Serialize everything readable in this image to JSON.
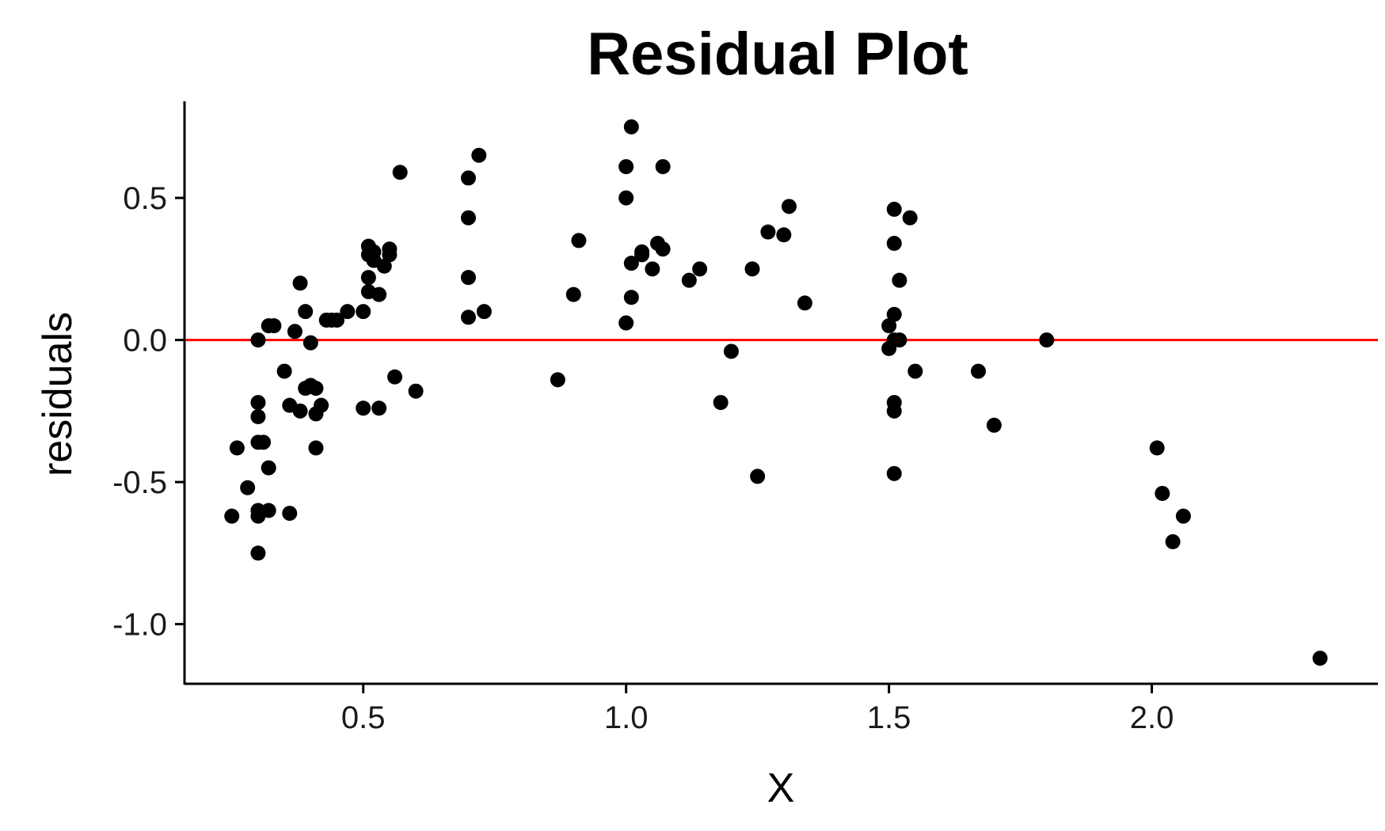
{
  "chart_data": {
    "type": "scatter",
    "title": "Residual Plot",
    "xlabel": "X",
    "ylabel": "residuals",
    "xlim": [
      0.16,
      2.43
    ],
    "ylim": [
      -1.21,
      0.84
    ],
    "x_ticks": [
      0.5,
      1.0,
      1.5,
      2.0
    ],
    "x_tick_labels": [
      "0.5",
      "1.0",
      "1.5",
      "2.0"
    ],
    "y_ticks": [
      -1.0,
      -0.5,
      0.0,
      0.5
    ],
    "y_tick_labels": [
      "-1.0",
      "-0.5",
      "0.0",
      "0.5"
    ],
    "grid": false,
    "point_color": "#000000",
    "reference_line": {
      "y": 0.0,
      "color": "#ff0000"
    },
    "points": [
      {
        "x": 0.25,
        "y": -0.62
      },
      {
        "x": 0.26,
        "y": -0.38
      },
      {
        "x": 0.28,
        "y": -0.52
      },
      {
        "x": 0.3,
        "y": 0.0
      },
      {
        "x": 0.3,
        "y": -0.22
      },
      {
        "x": 0.3,
        "y": -0.27
      },
      {
        "x": 0.3,
        "y": -0.36
      },
      {
        "x": 0.3,
        "y": -0.6
      },
      {
        "x": 0.3,
        "y": -0.62
      },
      {
        "x": 0.3,
        "y": -0.75
      },
      {
        "x": 0.31,
        "y": -0.36
      },
      {
        "x": 0.32,
        "y": 0.05
      },
      {
        "x": 0.32,
        "y": -0.45
      },
      {
        "x": 0.32,
        "y": -0.6
      },
      {
        "x": 0.33,
        "y": 0.05
      },
      {
        "x": 0.35,
        "y": -0.11
      },
      {
        "x": 0.36,
        "y": -0.23
      },
      {
        "x": 0.36,
        "y": -0.61
      },
      {
        "x": 0.37,
        "y": 0.03
      },
      {
        "x": 0.38,
        "y": 0.2
      },
      {
        "x": 0.38,
        "y": -0.25
      },
      {
        "x": 0.39,
        "y": 0.1
      },
      {
        "x": 0.39,
        "y": -0.17
      },
      {
        "x": 0.4,
        "y": -0.01
      },
      {
        "x": 0.4,
        "y": -0.16
      },
      {
        "x": 0.41,
        "y": -0.17
      },
      {
        "x": 0.41,
        "y": -0.26
      },
      {
        "x": 0.41,
        "y": -0.38
      },
      {
        "x": 0.42,
        "y": -0.23
      },
      {
        "x": 0.43,
        "y": 0.07
      },
      {
        "x": 0.44,
        "y": 0.07
      },
      {
        "x": 0.45,
        "y": 0.07
      },
      {
        "x": 0.47,
        "y": 0.1
      },
      {
        "x": 0.5,
        "y": 0.1
      },
      {
        "x": 0.5,
        "y": -0.24
      },
      {
        "x": 0.51,
        "y": 0.33
      },
      {
        "x": 0.51,
        "y": 0.3
      },
      {
        "x": 0.51,
        "y": 0.22
      },
      {
        "x": 0.51,
        "y": 0.17
      },
      {
        "x": 0.52,
        "y": 0.31
      },
      {
        "x": 0.52,
        "y": 0.28
      },
      {
        "x": 0.53,
        "y": 0.16
      },
      {
        "x": 0.53,
        "y": -0.24
      },
      {
        "x": 0.54,
        "y": 0.26
      },
      {
        "x": 0.55,
        "y": 0.32
      },
      {
        "x": 0.55,
        "y": 0.3
      },
      {
        "x": 0.56,
        "y": -0.13
      },
      {
        "x": 0.57,
        "y": 0.59
      },
      {
        "x": 0.6,
        "y": -0.18
      },
      {
        "x": 0.7,
        "y": 0.57
      },
      {
        "x": 0.7,
        "y": 0.43
      },
      {
        "x": 0.7,
        "y": 0.22
      },
      {
        "x": 0.7,
        "y": 0.08
      },
      {
        "x": 0.72,
        "y": 0.65
      },
      {
        "x": 0.73,
        "y": 0.1
      },
      {
        "x": 0.87,
        "y": -0.14
      },
      {
        "x": 0.9,
        "y": 0.16
      },
      {
        "x": 0.91,
        "y": 0.35
      },
      {
        "x": 1.0,
        "y": 0.61
      },
      {
        "x": 1.0,
        "y": 0.5
      },
      {
        "x": 1.0,
        "y": 0.06
      },
      {
        "x": 1.01,
        "y": 0.75
      },
      {
        "x": 1.01,
        "y": 0.27
      },
      {
        "x": 1.01,
        "y": 0.15
      },
      {
        "x": 1.03,
        "y": 0.31
      },
      {
        "x": 1.03,
        "y": 0.3
      },
      {
        "x": 1.05,
        "y": 0.25
      },
      {
        "x": 1.06,
        "y": 0.34
      },
      {
        "x": 1.07,
        "y": 0.61
      },
      {
        "x": 1.07,
        "y": 0.32
      },
      {
        "x": 1.12,
        "y": 0.21
      },
      {
        "x": 1.14,
        "y": 0.25
      },
      {
        "x": 1.18,
        "y": -0.22
      },
      {
        "x": 1.2,
        "y": -0.04
      },
      {
        "x": 1.24,
        "y": 0.25
      },
      {
        "x": 1.25,
        "y": -0.48
      },
      {
        "x": 1.27,
        "y": 0.38
      },
      {
        "x": 1.3,
        "y": 0.37
      },
      {
        "x": 1.31,
        "y": 0.47
      },
      {
        "x": 1.34,
        "y": 0.13
      },
      {
        "x": 1.5,
        "y": 0.05
      },
      {
        "x": 1.5,
        "y": -0.03
      },
      {
        "x": 1.51,
        "y": 0.46
      },
      {
        "x": 1.51,
        "y": 0.34
      },
      {
        "x": 1.51,
        "y": 0.09
      },
      {
        "x": 1.51,
        "y": 0.0
      },
      {
        "x": 1.51,
        "y": -0.22
      },
      {
        "x": 1.51,
        "y": -0.25
      },
      {
        "x": 1.51,
        "y": -0.47
      },
      {
        "x": 1.52,
        "y": 0.21
      },
      {
        "x": 1.52,
        "y": 0.0
      },
      {
        "x": 1.54,
        "y": 0.43
      },
      {
        "x": 1.55,
        "y": -0.11
      },
      {
        "x": 1.67,
        "y": -0.11
      },
      {
        "x": 1.7,
        "y": -0.3
      },
      {
        "x": 1.8,
        "y": 0.0
      },
      {
        "x": 2.01,
        "y": -0.38
      },
      {
        "x": 2.02,
        "y": -0.54
      },
      {
        "x": 2.04,
        "y": -0.71
      },
      {
        "x": 2.06,
        "y": -0.62
      },
      {
        "x": 2.32,
        "y": -1.12
      }
    ]
  }
}
